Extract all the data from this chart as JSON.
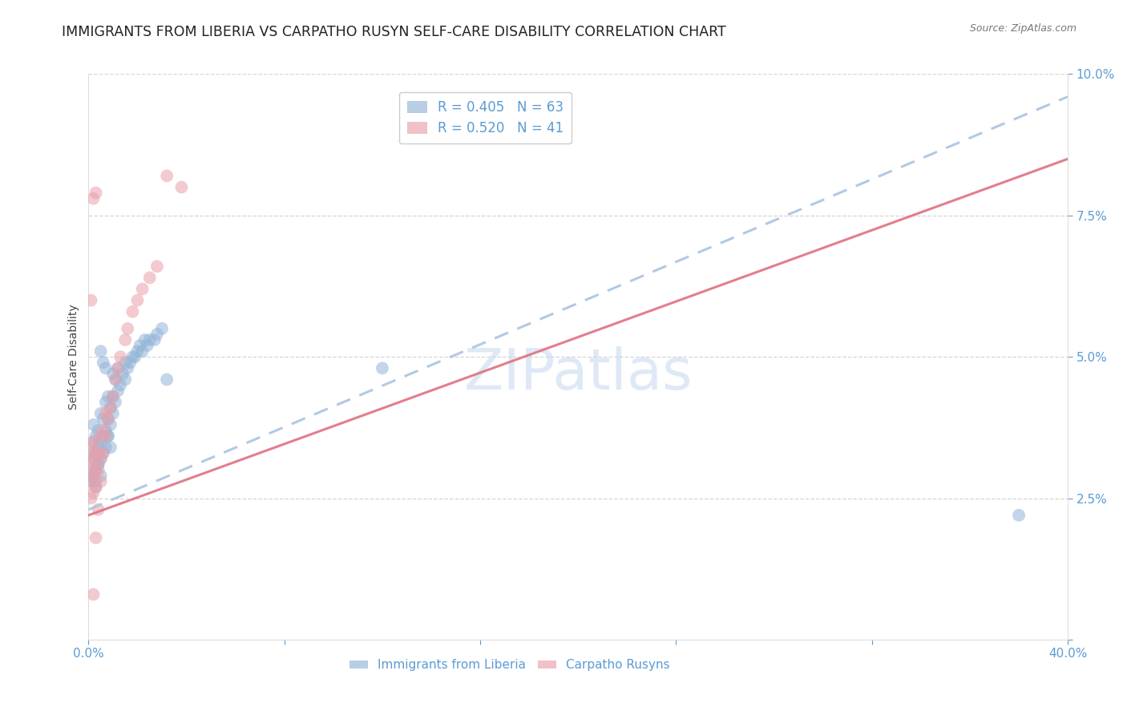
{
  "title": "IMMIGRANTS FROM LIBERIA VS CARPATHO RUSYN SELF-CARE DISABILITY CORRELATION CHART",
  "source": "Source: ZipAtlas.com",
  "ylabel": "Self-Care Disability",
  "xlim": [
    0.0,
    0.4
  ],
  "ylim": [
    0.0,
    0.1
  ],
  "xtick_vals": [
    0.0,
    0.08,
    0.16,
    0.24,
    0.32,
    0.4
  ],
  "xtick_labels": [
    "0.0%",
    "",
    "",
    "",
    "",
    "40.0%"
  ],
  "ytick_vals": [
    0.0,
    0.025,
    0.05,
    0.075,
    0.1
  ],
  "ytick_labels": [
    "",
    "2.5%",
    "5.0%",
    "7.5%",
    "10.0%"
  ],
  "legend1_label": "R = 0.405   N = 63",
  "legend2_label": "R = 0.520   N = 41",
  "blue_color": "#92b4d7",
  "pink_color": "#e8a0aa",
  "blue_line_color": "#a8c4e0",
  "pink_line_color": "#e07080",
  "watermark": "ZIPatlas",
  "background_color": "#ffffff",
  "grid_color": "#cccccc",
  "tick_color": "#5b9bd5",
  "title_fontsize": 12.5,
  "axis_label_fontsize": 10,
  "tick_fontsize": 11,
  "watermark_fontsize": 52,
  "blue_line": {
    "x0": 0.0,
    "x1": 0.4,
    "y0": 0.023,
    "y1": 0.096
  },
  "pink_line": {
    "x0": 0.0,
    "x1": 0.4,
    "y0": 0.022,
    "y1": 0.085
  },
  "blue_scatter_x": [
    0.001,
    0.001,
    0.002,
    0.002,
    0.002,
    0.003,
    0.003,
    0.003,
    0.003,
    0.004,
    0.004,
    0.004,
    0.005,
    0.005,
    0.005,
    0.005,
    0.006,
    0.006,
    0.006,
    0.007,
    0.007,
    0.007,
    0.008,
    0.008,
    0.008,
    0.009,
    0.009,
    0.01,
    0.01,
    0.01,
    0.011,
    0.011,
    0.012,
    0.012,
    0.013,
    0.014,
    0.015,
    0.015,
    0.016,
    0.017,
    0.018,
    0.019,
    0.02,
    0.021,
    0.022,
    0.023,
    0.024,
    0.025,
    0.027,
    0.028,
    0.03,
    0.032,
    0.001,
    0.002,
    0.003,
    0.004,
    0.005,
    0.006,
    0.007,
    0.008,
    0.009,
    0.12,
    0.38
  ],
  "blue_scatter_y": [
    0.03,
    0.033,
    0.032,
    0.035,
    0.038,
    0.028,
    0.03,
    0.033,
    0.036,
    0.031,
    0.034,
    0.037,
    0.029,
    0.032,
    0.035,
    0.04,
    0.033,
    0.036,
    0.039,
    0.034,
    0.037,
    0.042,
    0.036,
    0.039,
    0.043,
    0.038,
    0.041,
    0.04,
    0.043,
    0.047,
    0.042,
    0.046,
    0.044,
    0.048,
    0.045,
    0.047,
    0.046,
    0.049,
    0.048,
    0.049,
    0.05,
    0.05,
    0.051,
    0.052,
    0.051,
    0.053,
    0.052,
    0.053,
    0.053,
    0.054,
    0.055,
    0.046,
    0.028,
    0.029,
    0.027,
    0.031,
    0.051,
    0.049,
    0.048,
    0.036,
    0.034,
    0.048,
    0.022
  ],
  "pink_scatter_x": [
    0.001,
    0.001,
    0.001,
    0.001,
    0.002,
    0.002,
    0.002,
    0.002,
    0.003,
    0.003,
    0.003,
    0.004,
    0.004,
    0.005,
    0.005,
    0.005,
    0.006,
    0.006,
    0.007,
    0.007,
    0.008,
    0.009,
    0.01,
    0.011,
    0.012,
    0.013,
    0.015,
    0.016,
    0.018,
    0.02,
    0.022,
    0.025,
    0.028,
    0.032,
    0.002,
    0.003,
    0.004,
    0.038,
    0.001,
    0.002,
    0.003
  ],
  "pink_scatter_y": [
    0.025,
    0.028,
    0.031,
    0.034,
    0.026,
    0.029,
    0.032,
    0.035,
    0.027,
    0.03,
    0.033,
    0.03,
    0.033,
    0.028,
    0.032,
    0.036,
    0.033,
    0.037,
    0.036,
    0.04,
    0.039,
    0.041,
    0.043,
    0.046,
    0.048,
    0.05,
    0.053,
    0.055,
    0.058,
    0.06,
    0.062,
    0.064,
    0.066,
    0.082,
    0.008,
    0.018,
    0.023,
    0.08,
    0.06,
    0.078,
    0.079
  ]
}
